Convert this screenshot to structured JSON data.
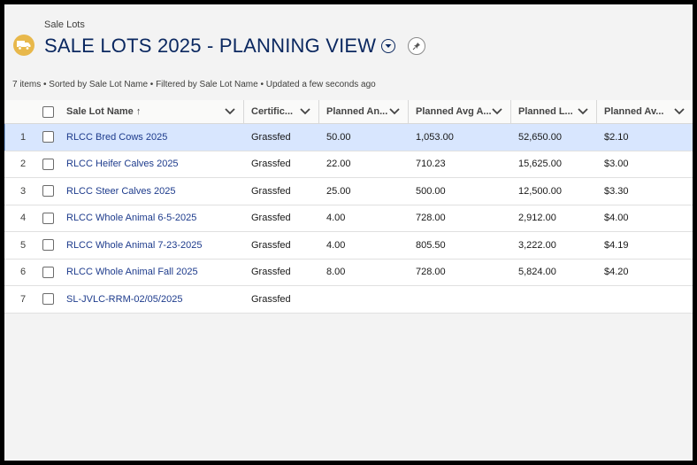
{
  "header": {
    "object_label": "Sale Lots",
    "title": "SALE LOTS 2025 - PLANNING VIEW",
    "subtitle": "7 items • Sorted by Sale Lot Name • Filtered by Sale Lot Name • Updated a few seconds ago",
    "icon": "truck-icon",
    "icon_color": "#e8b84b"
  },
  "columns": [
    {
      "label": "Sale Lot Name",
      "sorted": "ascending"
    },
    {
      "label": "Certific..."
    },
    {
      "label": "Planned An..."
    },
    {
      "label": "Planned Avg A..."
    },
    {
      "label": "Planned L..."
    },
    {
      "label": "Planned Av..."
    }
  ],
  "rows": [
    {
      "num": "1",
      "name": "RLCC Bred Cows 2025",
      "cert": "Grassfed",
      "c3": "50.00",
      "c4": "1,053.00",
      "c5": "52,650.00",
      "c6": "$2.10",
      "selected": true
    },
    {
      "num": "2",
      "name": "RLCC Heifer Calves 2025",
      "cert": "Grassfed",
      "c3": "22.00",
      "c4": "710.23",
      "c5": "15,625.00",
      "c6": "$3.00"
    },
    {
      "num": "3",
      "name": "RLCC Steer Calves 2025",
      "cert": "Grassfed",
      "c3": "25.00",
      "c4": "500.00",
      "c5": "12,500.00",
      "c6": "$3.30"
    },
    {
      "num": "4",
      "name": "RLCC Whole Animal 6-5-2025",
      "cert": "Grassfed",
      "c3": "4.00",
      "c4": "728.00",
      "c5": "2,912.00",
      "c6": "$4.00"
    },
    {
      "num": "5",
      "name": "RLCC Whole Animal 7-23-2025",
      "cert": "Grassfed",
      "c3": "4.00",
      "c4": "805.50",
      "c5": "3,222.00",
      "c6": "$4.19"
    },
    {
      "num": "6",
      "name": "RLCC Whole Animal Fall 2025",
      "cert": "Grassfed",
      "c3": "8.00",
      "c4": "728.00",
      "c5": "5,824.00",
      "c6": "$4.20"
    },
    {
      "num": "7",
      "name": "SL-JVLC-RRM-02/05/2025",
      "cert": "Grassfed",
      "c3": "",
      "c4": "",
      "c5": "",
      "c6": ""
    }
  ]
}
